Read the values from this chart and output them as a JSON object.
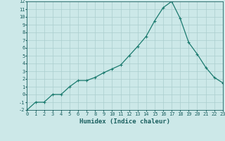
{
  "x": [
    0,
    1,
    2,
    3,
    4,
    5,
    6,
    7,
    8,
    9,
    10,
    11,
    12,
    13,
    14,
    15,
    16,
    17,
    18,
    19,
    20,
    21,
    22,
    23
  ],
  "y": [
    -2,
    -1,
    -1,
    0,
    0,
    1,
    1.8,
    1.8,
    2.2,
    2.8,
    3.3,
    3.8,
    5.0,
    6.2,
    7.5,
    9.5,
    11.2,
    12,
    9.8,
    6.7,
    5.2,
    3.5,
    2.2,
    1.5
  ],
  "line_color": "#1a7a6e",
  "marker": "+",
  "marker_size": 3,
  "marker_lw": 0.8,
  "line_width": 0.9,
  "bg_color": "#cce8e8",
  "grid_color": "#aacece",
  "xlabel": "Humidex (Indice chaleur)",
  "xlim": [
    0,
    23
  ],
  "ylim": [
    -2,
    12
  ],
  "xticks": [
    0,
    1,
    2,
    3,
    4,
    5,
    6,
    7,
    8,
    9,
    10,
    11,
    12,
    13,
    14,
    15,
    16,
    17,
    18,
    19,
    20,
    21,
    22,
    23
  ],
  "yticks": [
    -2,
    -1,
    0,
    1,
    2,
    3,
    4,
    5,
    6,
    7,
    8,
    9,
    10,
    11,
    12
  ],
  "tick_fontsize": 5.0,
  "label_fontsize": 6.5,
  "text_color": "#1a5f5f"
}
